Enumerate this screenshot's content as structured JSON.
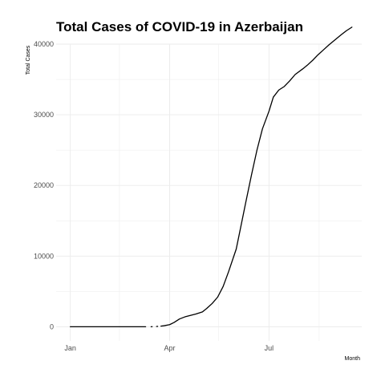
{
  "chart_data": {
    "type": "line",
    "title": "Total Cases of COVID-19 in Azerbaijan",
    "xlabel": "Month",
    "ylabel": "Total Cases",
    "x_ticks": [
      "Jan",
      "Apr",
      "Jul"
    ],
    "y_ticks": [
      0,
      10000,
      20000,
      30000,
      40000
    ],
    "ylim": [
      -2000,
      40000
    ],
    "grid": true,
    "legend": "none",
    "line_color": "#000000",
    "series": [
      {
        "x": [
          "2020-01-01",
          "2020-01-15",
          "2020-02-01",
          "2020-02-15",
          "2020-03-01",
          "2020-03-10"
        ],
        "y": [
          0,
          0,
          0,
          0,
          0,
          0
        ]
      },
      {
        "x": [
          "2020-03-15",
          "2020-03-16"
        ],
        "y": [
          5,
          15
        ]
      },
      {
        "x": [
          "2020-03-20",
          "2020-03-21"
        ],
        "y": [
          40,
          50
        ]
      },
      {
        "x": [
          "2020-03-24",
          "2020-03-27",
          "2020-04-01",
          "2020-04-05",
          "2020-04-10",
          "2020-04-15",
          "2020-04-20",
          "2020-04-25",
          "2020-05-01",
          "2020-05-05",
          "2020-05-10",
          "2020-05-15",
          "2020-05-20",
          "2020-05-25",
          "2020-06-01",
          "2020-06-05",
          "2020-06-10",
          "2020-06-15",
          "2020-06-20",
          "2020-06-25",
          "2020-07-01",
          "2020-07-05",
          "2020-07-10",
          "2020-07-15",
          "2020-07-20",
          "2020-07-25",
          "2020-08-01",
          "2020-08-05",
          "2020-08-10",
          "2020-08-15",
          "2020-08-20",
          "2020-08-25",
          "2020-09-01",
          "2020-09-05",
          "2020-09-10",
          "2020-09-15"
        ],
        "y": [
          90,
          150,
          300,
          600,
          1100,
          1400,
          1600,
          1800,
          2100,
          2600,
          3300,
          4200,
          5700,
          7800,
          11000,
          14000,
          17800,
          21500,
          25000,
          28000,
          30500,
          32500,
          33500,
          34000,
          34800,
          35700,
          36500,
          37000,
          37700,
          38500,
          39200,
          39900,
          40800,
          41300,
          41900,
          42400
        ]
      }
    ]
  }
}
